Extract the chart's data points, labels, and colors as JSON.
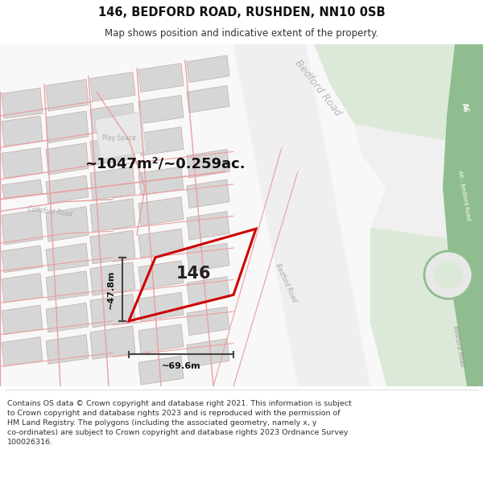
{
  "title": "146, BEDFORD ROAD, RUSHDEN, NN10 0SB",
  "subtitle": "Map shows position and indicative extent of the property.",
  "footer": "Contains OS data © Crown copyright and database right 2021. This information is subject\nto Crown copyright and database rights 2023 and is reproduced with the permission of\nHM Land Registry. The polygons (including the associated geometry, namely x, y\nco-ordinates) are subject to Crown copyright and database rights 2023 Ordnance Survey\n100026316.",
  "area_text": "~1047m²/~0.259ac.",
  "property_number": "146",
  "dim_height": "~47.8m",
  "dim_width": "~69.6m",
  "bg_color": "#ffffff",
  "green_area": "#dce9d8",
  "green_road": "#8fbd8f",
  "property_color": "#cc0000",
  "dim_color": "#444444",
  "text_color": "#222222",
  "road_pink": "#e8a0a0",
  "building_fill": "#d6d6d6",
  "building_stroke": "#c8a8a8"
}
